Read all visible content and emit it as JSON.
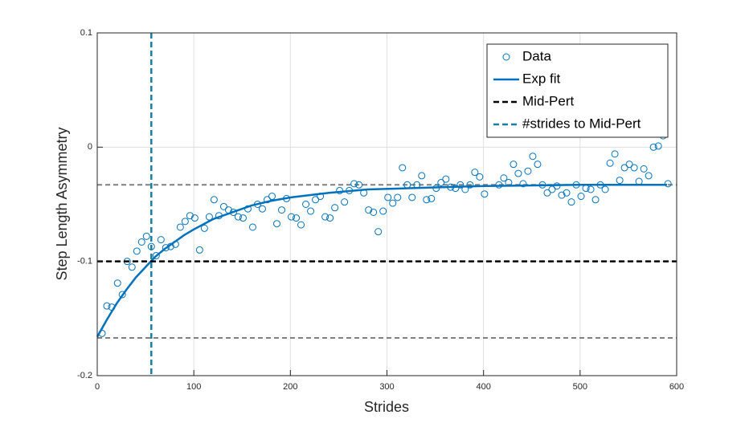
{
  "chart_data": {
    "type": "scatter",
    "xlabel": "Strides",
    "ylabel": "Step Length Asymmetry",
    "xlim": [
      0,
      600
    ],
    "xticks": [
      0,
      100,
      200,
      300,
      400,
      500,
      600
    ],
    "ylim": [
      -0.2,
      0.1
    ],
    "yticks": [
      -0.2,
      -0.1,
      0,
      0.1
    ],
    "grid": true,
    "legend_position": "upper right",
    "series": [
      {
        "name": "Data",
        "kind": "scatter",
        "color": "#0072bd",
        "x": [
          5,
          10,
          15,
          21,
          26,
          31,
          36,
          41,
          46,
          51,
          56,
          61,
          66,
          71,
          76,
          81,
          86,
          91,
          96,
          101,
          106,
          111,
          116,
          121,
          126,
          131,
          136,
          141,
          146,
          151,
          156,
          161,
          166,
          171,
          176,
          181,
          186,
          191,
          196,
          201,
          206,
          211,
          216,
          221,
          226,
          231,
          236,
          241,
          246,
          251,
          256,
          261,
          266,
          271,
          276,
          281,
          286,
          291,
          296,
          301,
          306,
          311,
          316,
          321,
          326,
          331,
          336,
          341,
          346,
          351,
          356,
          361,
          366,
          371,
          376,
          381,
          386,
          391,
          396,
          401,
          416,
          421,
          426,
          431,
          436,
          441,
          446,
          451,
          456,
          461,
          466,
          471,
          476,
          481,
          486,
          491,
          496,
          501,
          506,
          511,
          516,
          521,
          526,
          531,
          536,
          541,
          546,
          551,
          556,
          561,
          566,
          571,
          576,
          581,
          586,
          591
        ],
        "values": [
          -0.163,
          -0.139,
          -0.14,
          -0.119,
          -0.129,
          -0.1,
          -0.105,
          -0.091,
          -0.083,
          -0.078,
          -0.087,
          -0.095,
          -0.081,
          -0.088,
          -0.087,
          -0.085,
          -0.07,
          -0.065,
          -0.06,
          -0.062,
          -0.09,
          -0.071,
          -0.061,
          -0.046,
          -0.06,
          -0.052,
          -0.055,
          -0.057,
          -0.061,
          -0.062,
          -0.054,
          -0.07,
          -0.05,
          -0.054,
          -0.046,
          -0.043,
          -0.067,
          -0.055,
          -0.045,
          -0.061,
          -0.062,
          -0.068,
          -0.05,
          -0.056,
          -0.046,
          -0.043,
          -0.061,
          -0.062,
          -0.053,
          -0.038,
          -0.048,
          -0.038,
          -0.032,
          -0.033,
          -0.04,
          -0.055,
          -0.057,
          -0.074,
          -0.056,
          -0.044,
          -0.049,
          -0.044,
          -0.018,
          -0.033,
          -0.044,
          -0.033,
          -0.025,
          -0.046,
          -0.045,
          -0.036,
          -0.031,
          -0.028,
          -0.035,
          -0.036,
          -0.033,
          -0.037,
          -0.033,
          -0.022,
          -0.026,
          -0.041,
          -0.033,
          -0.027,
          -0.031,
          -0.015,
          -0.023,
          -0.032,
          -0.021,
          -0.008,
          -0.015,
          -0.033,
          -0.04,
          -0.037,
          -0.034,
          -0.042,
          -0.04,
          -0.048,
          -0.033,
          -0.043,
          -0.036,
          -0.037,
          -0.046,
          -0.033,
          -0.037,
          -0.014,
          -0.006,
          -0.029,
          -0.018,
          -0.015,
          -0.018,
          -0.03,
          -0.019,
          -0.025,
          0,
          0.001,
          0.01,
          -0.032
        ]
      },
      {
        "name": "Exp fit",
        "kind": "line",
        "color": "#0072bd",
        "x": [
          0,
          10,
          20,
          30,
          40,
          50,
          60,
          70,
          80,
          90,
          100,
          120,
          140,
          160,
          180,
          200,
          240,
          280,
          320,
          360,
          400,
          500,
          590
        ],
        "values": [
          -0.166,
          -0.151,
          -0.137,
          -0.125,
          -0.114,
          -0.105,
          -0.096,
          -0.089,
          -0.083,
          -0.077,
          -0.072,
          -0.063,
          -0.057,
          -0.051,
          -0.047,
          -0.044,
          -0.04,
          -0.037,
          -0.036,
          -0.035,
          -0.034,
          -0.033,
          -0.033
        ]
      },
      {
        "name": "Mid-Pert",
        "kind": "hline",
        "color": "#000000",
        "value": -0.1
      },
      {
        "name": "#strides to Mid-Pert",
        "kind": "vline",
        "color": "#1a7fa6",
        "value": 56
      }
    ],
    "reference_lines": {
      "color": "#808080",
      "values": [
        -0.033,
        -0.167
      ]
    }
  }
}
